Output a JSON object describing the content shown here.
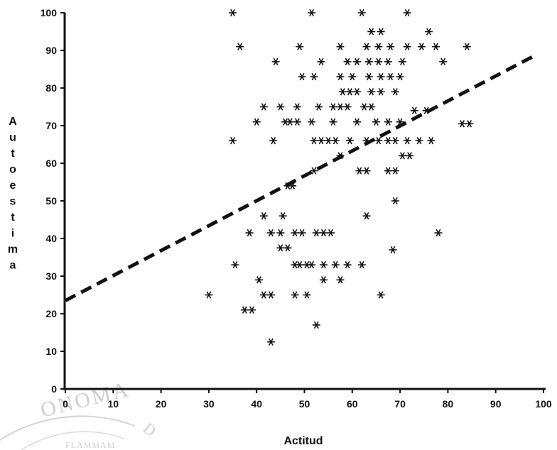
{
  "chart_data": {
    "type": "scatter",
    "title": "",
    "xlabel": "Actitud",
    "ylabel": "Autoestima",
    "xlim": [
      0,
      100
    ],
    "ylim": [
      0,
      100
    ],
    "xticks": [
      "0",
      "10",
      "20",
      "30",
      "40",
      "50",
      "60",
      "70",
      "80",
      "90",
      "100"
    ],
    "yticks": [
      "0",
      "10",
      "20",
      "30",
      "40",
      "50",
      "60",
      "70",
      "80",
      "90",
      "100"
    ],
    "grid": false,
    "legend": "none",
    "colors": {
      "points": "#111111",
      "trendline": "#111111",
      "axes": "#111111"
    },
    "trendline": {
      "style": "dashed",
      "x": [
        0,
        98
      ],
      "y": [
        23.5,
        88.5
      ]
    },
    "points": [
      {
        "x": 35,
        "y": 100
      },
      {
        "x": 51.5,
        "y": 100
      },
      {
        "x": 62,
        "y": 100
      },
      {
        "x": 71.5,
        "y": 100
      },
      {
        "x": 64,
        "y": 95
      },
      {
        "x": 66,
        "y": 95
      },
      {
        "x": 76,
        "y": 95
      },
      {
        "x": 36.5,
        "y": 91
      },
      {
        "x": 49,
        "y": 91
      },
      {
        "x": 57.5,
        "y": 91
      },
      {
        "x": 63,
        "y": 91
      },
      {
        "x": 65.5,
        "y": 91
      },
      {
        "x": 68,
        "y": 91
      },
      {
        "x": 71.5,
        "y": 91
      },
      {
        "x": 74.5,
        "y": 91
      },
      {
        "x": 77.5,
        "y": 91
      },
      {
        "x": 84,
        "y": 91
      },
      {
        "x": 44,
        "y": 87
      },
      {
        "x": 53.5,
        "y": 87
      },
      {
        "x": 59,
        "y": 87
      },
      {
        "x": 61,
        "y": 87
      },
      {
        "x": 63.5,
        "y": 87
      },
      {
        "x": 65.5,
        "y": 87
      },
      {
        "x": 67.5,
        "y": 87
      },
      {
        "x": 70.5,
        "y": 87
      },
      {
        "x": 79,
        "y": 87
      },
      {
        "x": 49.5,
        "y": 83
      },
      {
        "x": 52,
        "y": 83
      },
      {
        "x": 57.5,
        "y": 83
      },
      {
        "x": 60,
        "y": 83
      },
      {
        "x": 63.5,
        "y": 83
      },
      {
        "x": 66,
        "y": 83
      },
      {
        "x": 68,
        "y": 83
      },
      {
        "x": 70,
        "y": 83
      },
      {
        "x": 58,
        "y": 79
      },
      {
        "x": 59.5,
        "y": 79
      },
      {
        "x": 61,
        "y": 79
      },
      {
        "x": 64,
        "y": 79
      },
      {
        "x": 66,
        "y": 79
      },
      {
        "x": 69,
        "y": 79
      },
      {
        "x": 41.5,
        "y": 75
      },
      {
        "x": 45,
        "y": 75
      },
      {
        "x": 48.5,
        "y": 75
      },
      {
        "x": 53,
        "y": 75
      },
      {
        "x": 56,
        "y": 75
      },
      {
        "x": 57.5,
        "y": 75
      },
      {
        "x": 59,
        "y": 75
      },
      {
        "x": 62.5,
        "y": 75
      },
      {
        "x": 64,
        "y": 75
      },
      {
        "x": 73,
        "y": 74
      },
      {
        "x": 75.5,
        "y": 74
      },
      {
        "x": 40,
        "y": 71
      },
      {
        "x": 46,
        "y": 71
      },
      {
        "x": 47,
        "y": 71
      },
      {
        "x": 48.5,
        "y": 71
      },
      {
        "x": 51.5,
        "y": 71
      },
      {
        "x": 56,
        "y": 71
      },
      {
        "x": 61,
        "y": 71
      },
      {
        "x": 65,
        "y": 71
      },
      {
        "x": 67.5,
        "y": 71
      },
      {
        "x": 70,
        "y": 71
      },
      {
        "x": 83,
        "y": 70.5
      },
      {
        "x": 84.5,
        "y": 70.5
      },
      {
        "x": 35,
        "y": 66
      },
      {
        "x": 43.5,
        "y": 66
      },
      {
        "x": 52,
        "y": 66
      },
      {
        "x": 53.5,
        "y": 66
      },
      {
        "x": 55,
        "y": 66
      },
      {
        "x": 56.5,
        "y": 66
      },
      {
        "x": 59.5,
        "y": 66
      },
      {
        "x": 63,
        "y": 66
      },
      {
        "x": 65.5,
        "y": 66
      },
      {
        "x": 67.5,
        "y": 66
      },
      {
        "x": 69,
        "y": 66
      },
      {
        "x": 71.5,
        "y": 66
      },
      {
        "x": 74,
        "y": 66
      },
      {
        "x": 76.5,
        "y": 66
      },
      {
        "x": 57.5,
        "y": 62
      },
      {
        "x": 70.5,
        "y": 62
      },
      {
        "x": 72,
        "y": 62
      },
      {
        "x": 52,
        "y": 58
      },
      {
        "x": 61.5,
        "y": 58
      },
      {
        "x": 63,
        "y": 58
      },
      {
        "x": 67.5,
        "y": 58
      },
      {
        "x": 69,
        "y": 58
      },
      {
        "x": 46.5,
        "y": 54
      },
      {
        "x": 47.5,
        "y": 54
      },
      {
        "x": 69,
        "y": 50
      },
      {
        "x": 41.5,
        "y": 46
      },
      {
        "x": 45.5,
        "y": 46
      },
      {
        "x": 63,
        "y": 46
      },
      {
        "x": 38.5,
        "y": 41.5
      },
      {
        "x": 43,
        "y": 41.5
      },
      {
        "x": 45,
        "y": 41.5
      },
      {
        "x": 48,
        "y": 41.5
      },
      {
        "x": 49.5,
        "y": 41.5
      },
      {
        "x": 52.5,
        "y": 41.5
      },
      {
        "x": 54,
        "y": 41.5
      },
      {
        "x": 55.5,
        "y": 41.5
      },
      {
        "x": 78,
        "y": 41.5
      },
      {
        "x": 45,
        "y": 37.5
      },
      {
        "x": 46.5,
        "y": 37.5
      },
      {
        "x": 68.5,
        "y": 37
      },
      {
        "x": 35.5,
        "y": 33
      },
      {
        "x": 48,
        "y": 33
      },
      {
        "x": 49,
        "y": 33
      },
      {
        "x": 50.5,
        "y": 33
      },
      {
        "x": 51.5,
        "y": 33
      },
      {
        "x": 54,
        "y": 33
      },
      {
        "x": 56.5,
        "y": 33
      },
      {
        "x": 59,
        "y": 33
      },
      {
        "x": 62,
        "y": 33
      },
      {
        "x": 40.5,
        "y": 29
      },
      {
        "x": 54,
        "y": 29
      },
      {
        "x": 57.5,
        "y": 29
      },
      {
        "x": 30,
        "y": 25
      },
      {
        "x": 41.5,
        "y": 25
      },
      {
        "x": 43,
        "y": 25
      },
      {
        "x": 48,
        "y": 25
      },
      {
        "x": 50.5,
        "y": 25
      },
      {
        "x": 66,
        "y": 25
      },
      {
        "x": 37.5,
        "y": 21
      },
      {
        "x": 39,
        "y": 21
      },
      {
        "x": 52.5,
        "y": 17
      },
      {
        "x": 43,
        "y": 12.5
      }
    ]
  }
}
